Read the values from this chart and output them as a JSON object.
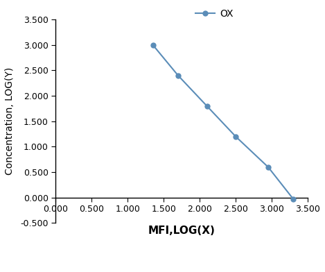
{
  "x": [
    1.35,
    1.7,
    2.1,
    2.5,
    2.95,
    3.3
  ],
  "y": [
    3.0,
    2.4,
    1.8,
    1.2,
    0.6,
    -0.03
  ],
  "line_color": "#5b8db8",
  "marker": "o",
  "marker_size": 5,
  "legend_label": "OX",
  "xlabel": "MFI,LOG(X)",
  "ylabel": "Concentration, LOG(Y)",
  "xlim": [
    0.0,
    3.5
  ],
  "ylim": [
    -0.5,
    3.5
  ],
  "xticks": [
    0.0,
    0.5,
    1.0,
    1.5,
    2.0,
    2.5,
    3.0,
    3.5
  ],
  "yticks": [
    -0.5,
    0.0,
    0.5,
    1.0,
    1.5,
    2.0,
    2.5,
    3.0,
    3.5
  ],
  "xlabel_fontsize": 11,
  "ylabel_fontsize": 10,
  "tick_fontsize": 9,
  "legend_fontsize": 10,
  "background_color": "#ffffff"
}
